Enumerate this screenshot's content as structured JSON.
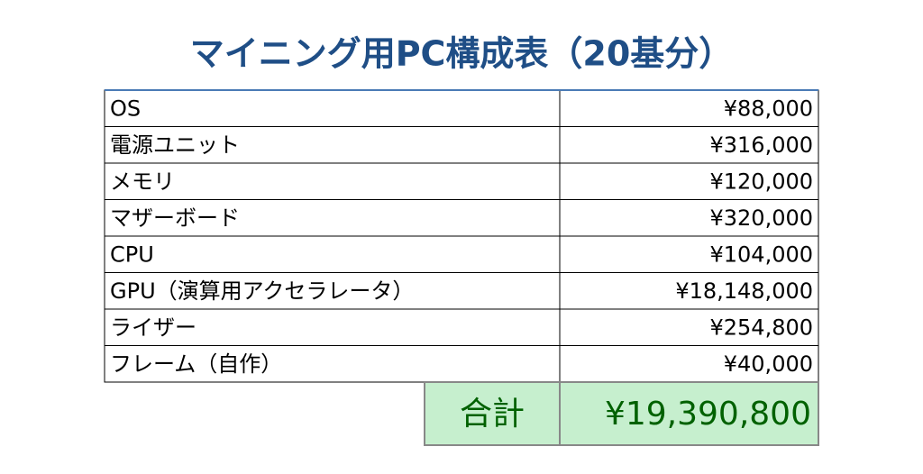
{
  "title": "マイニング用PC構成表（20基分）",
  "table": {
    "rows": [
      [
        "OS",
        "¥88,000"
      ],
      [
        "電源ユニット",
        "¥316,000"
      ],
      [
        "メモリ",
        "¥120,000"
      ],
      [
        "マザーボード",
        "¥320,000"
      ],
      [
        "CPU",
        "¥104,000"
      ],
      [
        "GPU（演算用アクセラレータ）",
        "¥18,148,000"
      ],
      [
        "ライザー",
        "¥254,800"
      ],
      [
        "フレーム（自作）",
        "¥40,000"
      ]
    ]
  },
  "total": {
    "label": "合計",
    "value": "¥19,390,800"
  }
}
